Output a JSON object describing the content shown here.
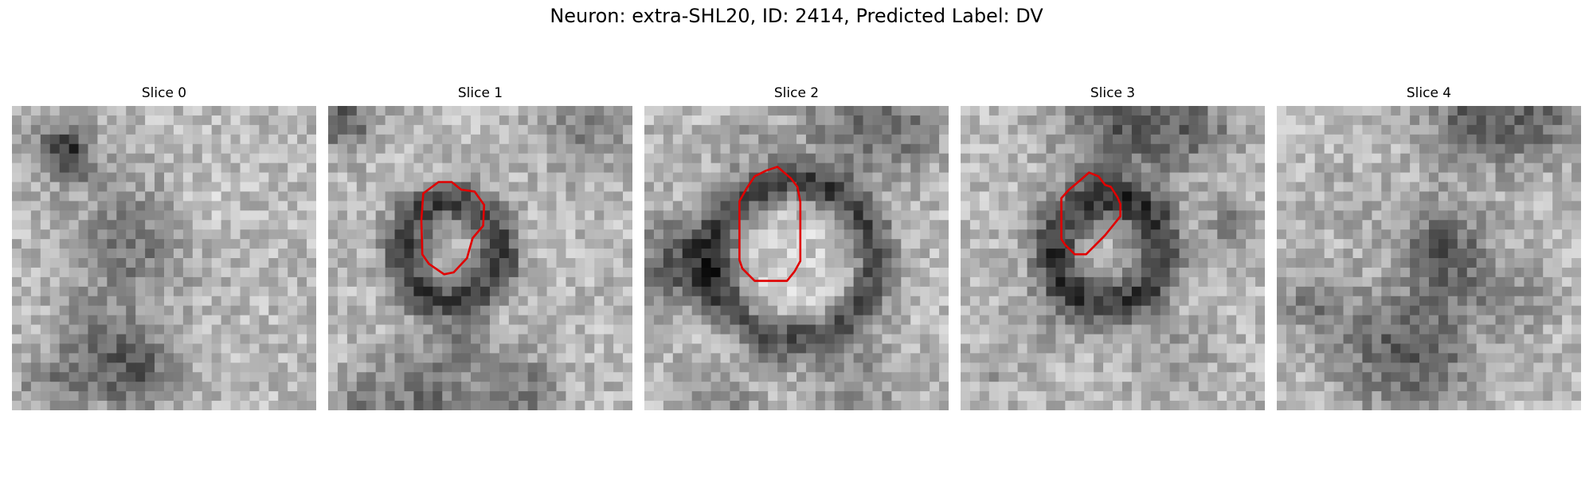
{
  "figure": {
    "title": "Neuron: extra-SHL20, ID: 2414, Predicted Label: DV"
  },
  "panels": [
    {
      "title": "Slice 0"
    },
    {
      "title": "Slice 1"
    },
    {
      "title": "Slice 2"
    },
    {
      "title": "Slice 3"
    },
    {
      "title": "Slice 4"
    }
  ],
  "colors": {
    "contour": "#e00000",
    "background": "#ffffff",
    "colormap": "gray"
  }
}
